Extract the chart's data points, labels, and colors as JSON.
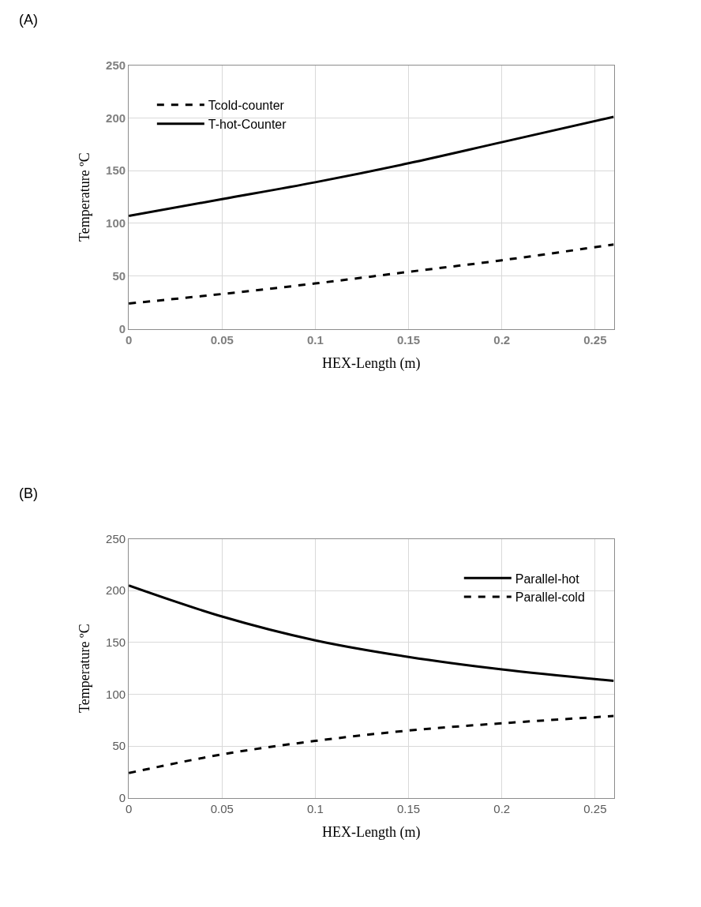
{
  "chart_data": [
    {
      "type": "line",
      "xlabel": "HEX-Length (m)",
      "ylabel": "Temperature ºC",
      "annotations": [
        "(A)"
      ],
      "xlim": [
        0,
        0.26
      ],
      "xticks": [
        0,
        0.05,
        0.1,
        0.15,
        0.2,
        0.25
      ],
      "ylim": [
        0,
        250
      ],
      "yticks": [
        0,
        50,
        100,
        150,
        200,
        250
      ],
      "grid": true,
      "legend": "top left",
      "marker": "none",
      "x": [
        0,
        0.05,
        0.1,
        0.15,
        0.2,
        0.26
      ],
      "series": [
        {
          "name": "Tcold-counter",
          "color": "#000000",
          "line_style": "dashed",
          "values": [
            24,
            33,
            43,
            54,
            65,
            80
          ]
        },
        {
          "name": "T-hot-Counter",
          "color": "#000000",
          "line_style": "solid",
          "values": [
            107,
            123,
            139,
            157,
            177,
            201
          ]
        }
      ]
    },
    {
      "type": "line",
      "xlabel": "HEX-Length (m)",
      "ylabel": "Temperature ºC",
      "annotations": [
        "(B)"
      ],
      "xlim": [
        0,
        0.26
      ],
      "xticks": [
        0,
        0.05,
        0.1,
        0.15,
        0.2,
        0.25
      ],
      "ylim": [
        0,
        250
      ],
      "yticks": [
        0,
        50,
        100,
        150,
        200,
        250
      ],
      "grid": true,
      "legend": "top right",
      "marker": "none",
      "x": [
        0,
        0.05,
        0.1,
        0.15,
        0.2,
        0.26
      ],
      "series": [
        {
          "name": "Parallel-hot",
          "color": "#000000",
          "line_style": "solid",
          "values": [
            205,
            175,
            152,
            136,
            124,
            113
          ]
        },
        {
          "name": "Parallel-cold",
          "color": "#000000",
          "line_style": "dashed",
          "values": [
            24,
            42,
            55,
            65,
            72,
            79
          ]
        }
      ]
    }
  ]
}
